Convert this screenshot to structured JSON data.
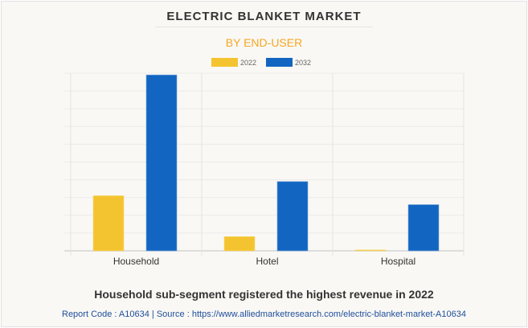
{
  "chart_data": {
    "type": "bar",
    "title": "ELECTRIC BLANKET MARKET",
    "subtitle": "BY END-USER",
    "categories": [
      "Household",
      "Hotel",
      "Hospital"
    ],
    "series": [
      {
        "name": "2022",
        "color": "#f4c430",
        "values": [
          3.1,
          0.8,
          0.05
        ]
      },
      {
        "name": "2032",
        "color": "#1266c1",
        "values": [
          9.9,
          3.9,
          2.6
        ]
      }
    ],
    "ylim": [
      0,
      10
    ],
    "grid": true,
    "legend": "top",
    "xlabel": "",
    "ylabel": ""
  },
  "caption": "Household sub-segment registered the highest revenue in 2022",
  "footer": "Report Code : A10634  |  Source : https://www.alliedmarketresearch.com/electric-blanket-market-A10634"
}
